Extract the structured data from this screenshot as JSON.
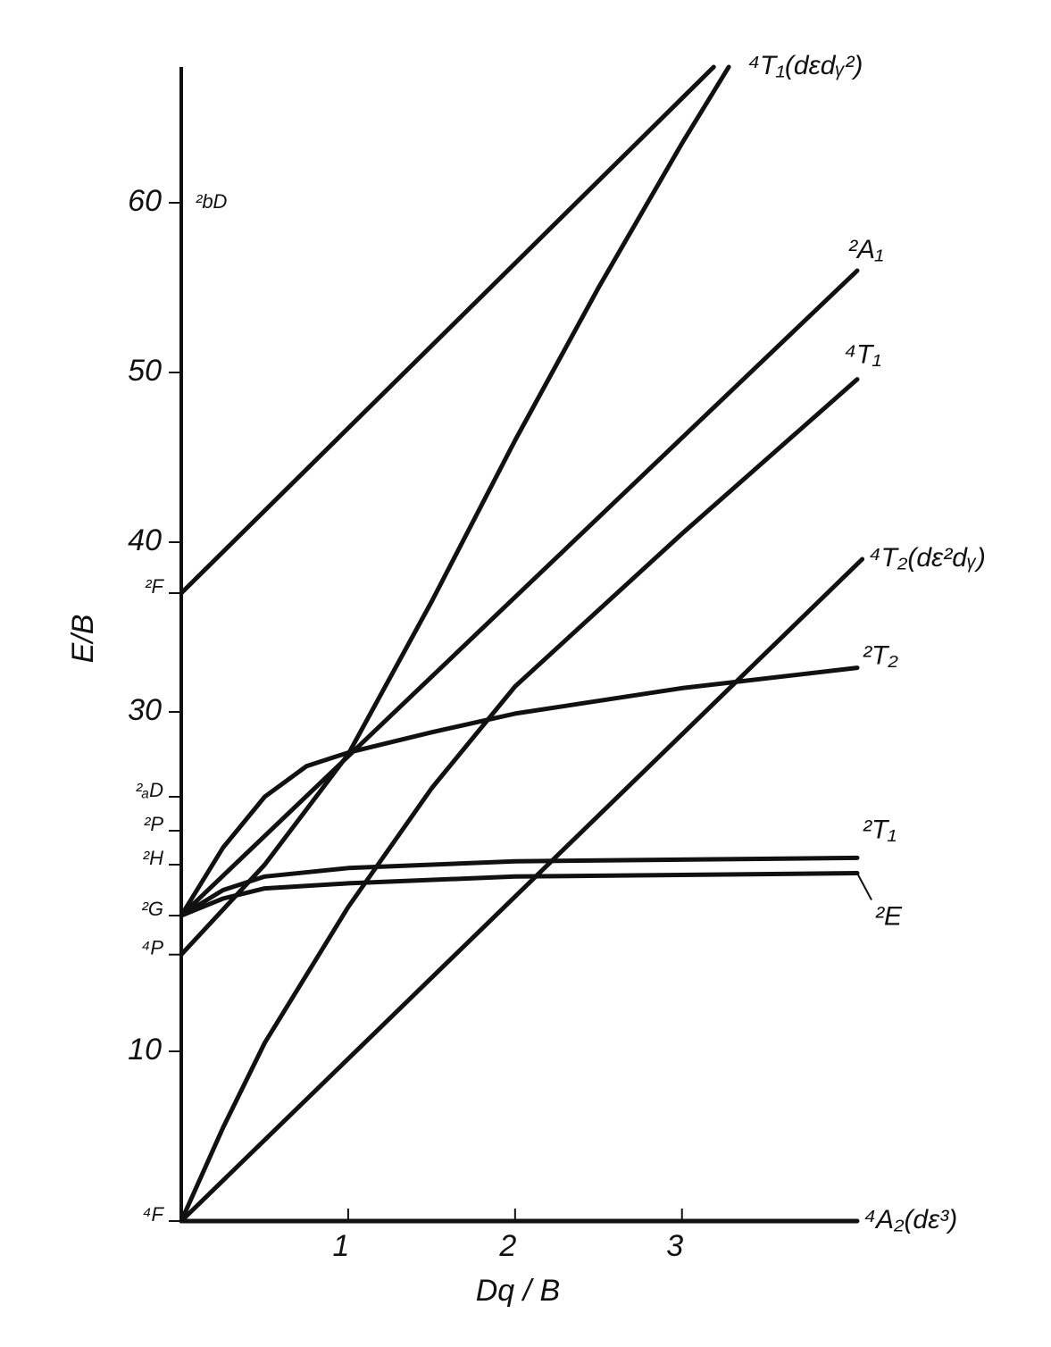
{
  "chart_data": {
    "type": "line",
    "xlabel": "Dq / B",
    "ylabel": "E/B",
    "xlim": [
      0,
      4.05
    ],
    "ylim": [
      0,
      68
    ],
    "xticks": [
      1,
      2,
      3
    ],
    "yticks": [
      10,
      30,
      40,
      50,
      60
    ],
    "color": "#111111",
    "levels": [
      {
        "label": "⁴F",
        "value": 0
      },
      {
        "label": "⁴P",
        "value": 15.7
      },
      {
        "label": "²G",
        "value": 18
      },
      {
        "label": "²H",
        "value": 21
      },
      {
        "label": "²P",
        "value": 23
      },
      {
        "label": "²ₐD",
        "value": 25
      },
      {
        "label": "²F",
        "value": 37
      },
      {
        "label": "²bD",
        "value": 60
      }
    ],
    "series": [
      {
        "x": [
          0,
          3.19
        ],
        "values": [
          37,
          68
        ]
      },
      {
        "name": "⁴T₁(dεdᵧ²)",
        "x": [
          0,
          0.5,
          1,
          1.5,
          2,
          2.5,
          3,
          3.28
        ],
        "values": [
          15.7,
          21,
          27.5,
          36.5,
          46,
          55,
          63.5,
          68
        ]
      },
      {
        "name": "²A₁",
        "x": [
          0,
          4.05
        ],
        "values": [
          18,
          56
        ]
      },
      {
        "name": "⁴T₁",
        "x": [
          0,
          0.25,
          0.5,
          1,
          1.5,
          2,
          3,
          4.05
        ],
        "values": [
          0,
          5.5,
          10.5,
          18.5,
          25.5,
          31.5,
          40.5,
          49.6
        ]
      },
      {
        "name": "⁴T₂(dε²dᵧ)",
        "x": [
          0,
          4.08
        ],
        "values": [
          0,
          39
        ]
      },
      {
        "name": "²T₂",
        "x": [
          0,
          0.25,
          0.5,
          0.75,
          1,
          1.5,
          2,
          3,
          4.05
        ],
        "values": [
          18,
          22,
          25,
          26.8,
          27.6,
          28.8,
          29.9,
          31.4,
          32.6
        ]
      },
      {
        "name": "²T₁",
        "x": [
          0,
          0.25,
          0.5,
          1,
          2,
          4.05
        ],
        "values": [
          18,
          19.5,
          20.3,
          20.8,
          21.2,
          21.4
        ]
      },
      {
        "name": "²E",
        "x": [
          0,
          0.25,
          0.5,
          1,
          2,
          4.05
        ],
        "values": [
          18,
          19,
          19.6,
          19.9,
          20.3,
          20.5
        ]
      },
      {
        "name": "⁴A₂(dε³)",
        "x": [
          0,
          4.05
        ],
        "values": [
          0,
          0
        ]
      }
    ]
  }
}
